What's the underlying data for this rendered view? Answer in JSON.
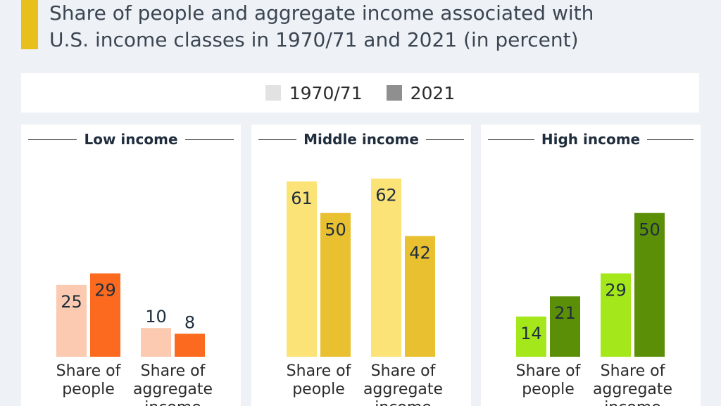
{
  "title": {
    "line1": "Share of people and aggregate income associated with",
    "line2": "U.S. income classes in 1970/71 and 2021 (in percent)"
  },
  "colors": {
    "accent": "#e8c01e",
    "legend_1970": "#e2e2e2",
    "legend_2021": "#8f8f8f"
  },
  "legend": [
    {
      "label": "1970/71"
    },
    {
      "label": "2021"
    }
  ],
  "chart_data": [
    {
      "type": "bar",
      "title": "Low income",
      "categories": [
        "Share of people",
        "Share of aggregate income"
      ],
      "category_lines": [
        [
          "Share of",
          "people"
        ],
        [
          "Share of",
          "aggregate",
          "income"
        ]
      ],
      "series": [
        {
          "name": "1970/71",
          "values": [
            25,
            10
          ],
          "color": "#fbcab0"
        },
        {
          "name": "2021",
          "values": [
            29,
            8
          ],
          "color": "#fb6a1e"
        }
      ],
      "ylim": [
        0,
        70
      ]
    },
    {
      "type": "bar",
      "title": "Middle income",
      "categories": [
        "Share of people",
        "Share of aggregate income"
      ],
      "category_lines": [
        [
          "Share of",
          "people"
        ],
        [
          "Share of",
          "aggregate",
          "income"
        ]
      ],
      "series": [
        {
          "name": "1970/71",
          "values": [
            61,
            62
          ],
          "color": "#fbe377"
        },
        {
          "name": "2021",
          "values": [
            50,
            42
          ],
          "color": "#e8c030"
        }
      ],
      "ylim": [
        0,
        70
      ]
    },
    {
      "type": "bar",
      "title": "High income",
      "categories": [
        "Share of people",
        "Share of aggregate income"
      ],
      "category_lines": [
        [
          "Share of",
          "people"
        ],
        [
          "Share of",
          "aggregate",
          "income"
        ]
      ],
      "series": [
        {
          "name": "1970/71",
          "values": [
            14,
            29
          ],
          "color": "#a4e81c"
        },
        {
          "name": "2021",
          "values": [
            21,
            50
          ],
          "color": "#5c8f08"
        }
      ],
      "ylim": [
        0,
        70
      ]
    }
  ]
}
